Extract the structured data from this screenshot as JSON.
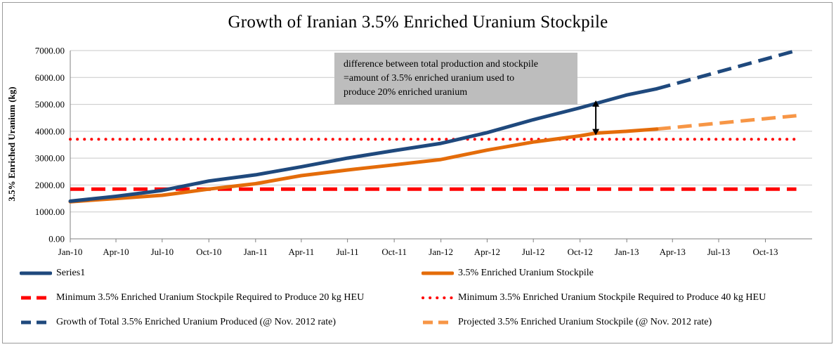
{
  "chart_data": {
    "type": "line",
    "title": "Growth of Iranian 3.5% Enriched Uranium Stockpile",
    "ylabel": "3.5% Enriched Uranium (kg)",
    "xlabel": "",
    "ylim": [
      0,
      7000
    ],
    "y_ticks": [
      "0.00",
      "1000.00",
      "2000.00",
      "3000.00",
      "4000.00",
      "5000.00",
      "6000.00",
      "7000.00"
    ],
    "x_ticks": [
      "Jan-10",
      "Apr-10",
      "Jul-10",
      "Oct-10",
      "Jan-11",
      "Apr-11",
      "Jul-11",
      "Oct-11",
      "Jan-12",
      "Apr-12",
      "Jul-12",
      "Oct-12",
      "Jan-13",
      "Apr-13",
      "Jul-13",
      "Oct-13"
    ],
    "grid": "horizontal",
    "legend_position": "bottom",
    "series": [
      {
        "name": "Series1",
        "color": "#1f497d",
        "style": "solid",
        "x": [
          "2010-01-01",
          "2010-04-01",
          "2010-07-01",
          "2010-10-01",
          "2011-01-01",
          "2011-04-01",
          "2011-07-01",
          "2011-10-01",
          "2012-01-01",
          "2012-04-01",
          "2012-07-01",
          "2012-10-01",
          "2013-01-01",
          "2013-03-01"
        ],
        "values": [
          1400,
          1580,
          1800,
          2150,
          2380,
          2680,
          3000,
          3280,
          3550,
          3950,
          4430,
          4870,
          5350,
          5580
        ]
      },
      {
        "name": "3.5% Enriched Uranium Stockpile",
        "color": "#e46c0a",
        "style": "solid",
        "x": [
          "2010-01-01",
          "2010-04-01",
          "2010-07-01",
          "2010-10-01",
          "2011-01-01",
          "2011-04-01",
          "2011-07-01",
          "2011-10-01",
          "2012-01-01",
          "2012-04-01",
          "2012-07-01",
          "2012-10-01",
          "2012-11-01",
          "2013-01-01",
          "2013-03-01"
        ],
        "values": [
          1380,
          1500,
          1620,
          1850,
          2050,
          2350,
          2560,
          2750,
          2950,
          3300,
          3600,
          3830,
          3930,
          4000,
          4080
        ]
      },
      {
        "name": "Minimum 3.5% Enriched Uranium Stockpile Required to Produce 20 kg HEU",
        "color": "#ff0000",
        "style": "dashed",
        "x": [
          "2010-01-01",
          "2013-12-01"
        ],
        "values": [
          1850,
          1850
        ]
      },
      {
        "name": "Minimum 3.5% Enriched Uranium Stockpile Required to Produce 40 kg HEU",
        "color": "#ff0000",
        "style": "dotted",
        "x": [
          "2010-01-01",
          "2013-12-01"
        ],
        "values": [
          3700,
          3700
        ]
      },
      {
        "name": "Growth of Total 3.5% Enriched Uranium Produced (@ Nov. 2012 rate)",
        "color": "#1f497d",
        "style": "dashed",
        "x": [
          "2013-03-01",
          "2013-12-01"
        ],
        "values": [
          5580,
          7000
        ]
      },
      {
        "name": "Projected 3.5% Enriched Uranium Stockpile (@ Nov. 2012 rate)",
        "color": "#f79646",
        "style": "dashed",
        "x": [
          "2013-03-01",
          "2013-12-01"
        ],
        "values": [
          4080,
          4580
        ]
      }
    ],
    "annotations": [
      {
        "type": "textbox",
        "lines": [
          "difference between total production and stockpile",
          "=amount of 3.5% enriched uranium used to",
          "produce 20% enriched uranium"
        ]
      },
      {
        "type": "double-arrow",
        "x": "2012-11-01",
        "from": 3850,
        "to": 5150
      }
    ]
  }
}
